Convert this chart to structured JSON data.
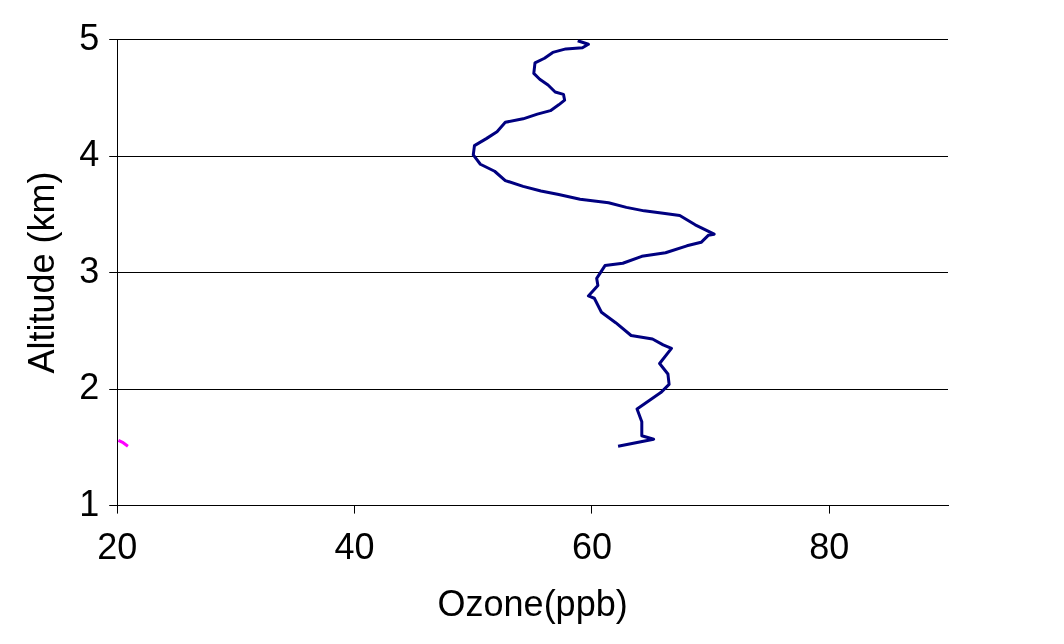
{
  "chart_data": {
    "type": "line",
    "xlabel": "Ozone(ppb)",
    "ylabel": "Altitude (km)",
    "xlim": [
      20,
      90
    ],
    "xticks": [
      20,
      40,
      60,
      80
    ],
    "ylim": [
      1,
      5
    ],
    "yticks": [
      1,
      2,
      3,
      4,
      5
    ],
    "grid": "y",
    "legend": false,
    "marker": "none",
    "series": [
      {
        "color": "#000080",
        "x": [
          62.2,
          65.2,
          64.2,
          64.2,
          63.8,
          65.8,
          66.5,
          66.4,
          65.7,
          66.7,
          66.0,
          65.1,
          63.3,
          62.0,
          60.8,
          60.2,
          59.7,
          60.5,
          60.4,
          61.1,
          62.6,
          64.2,
          66.2,
          68.0,
          69.2,
          69.8,
          70.3,
          68.7,
          67.4,
          66.0,
          64.4,
          62.9,
          61.4,
          59.0,
          57.2,
          55.7,
          54.2,
          52.7,
          51.8,
          50.6,
          50.0,
          50.1,
          51.1,
          52.0,
          52.7,
          54.2,
          55.4,
          56.5,
          57.2,
          57.7,
          57.6,
          56.9,
          56.3,
          55.6,
          55.1,
          55.2,
          56.0,
          56.7,
          57.8,
          59.2,
          59.7,
          58.8
        ],
        "values": [
          1.51,
          1.57,
          1.6,
          1.72,
          1.83,
          1.97,
          2.04,
          2.13,
          2.22,
          2.35,
          2.38,
          2.43,
          2.46,
          2.57,
          2.66,
          2.78,
          2.8,
          2.89,
          2.95,
          3.06,
          3.08,
          3.14,
          3.17,
          3.23,
          3.26,
          3.32,
          3.33,
          3.41,
          3.49,
          3.51,
          3.53,
          3.56,
          3.6,
          3.63,
          3.67,
          3.7,
          3.74,
          3.79,
          3.87,
          3.93,
          4.01,
          4.09,
          4.15,
          4.21,
          4.29,
          4.32,
          4.36,
          4.39,
          4.44,
          4.48,
          4.53,
          4.55,
          4.61,
          4.66,
          4.71,
          4.8,
          4.84,
          4.89,
          4.92,
          4.93,
          4.96,
          4.99
        ]
      },
      {
        "color": "#ff00ff",
        "x": [
          20.1,
          20.5,
          20.9
        ],
        "values": [
          1.56,
          1.54,
          1.51
        ]
      }
    ]
  }
}
